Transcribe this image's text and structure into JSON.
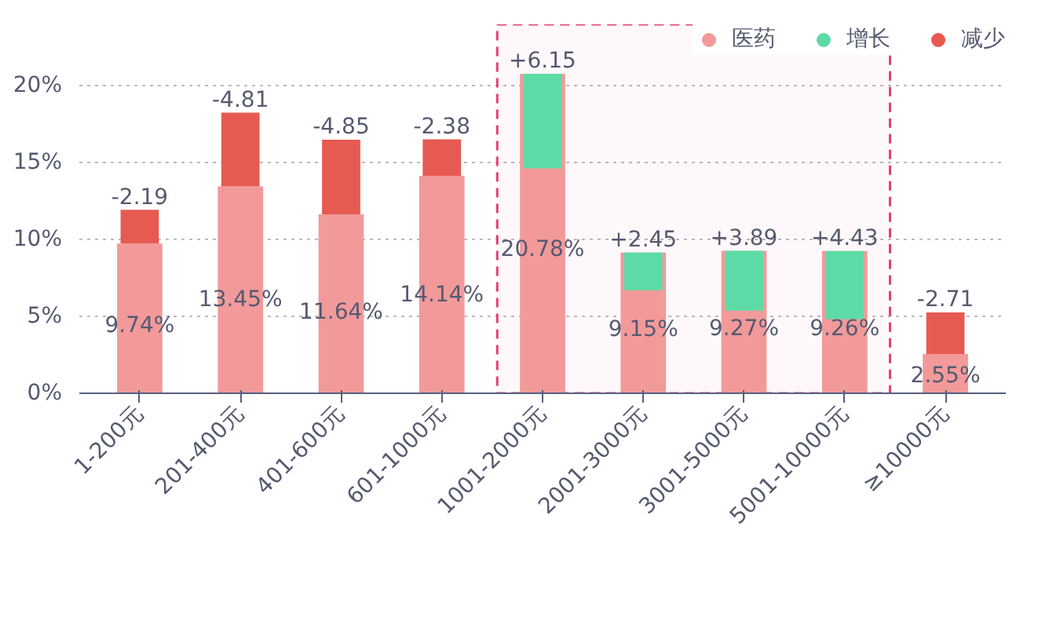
{
  "chart_data": {
    "type": "bar",
    "categories": [
      "1-200元",
      "201-400元",
      "401-600元",
      "601-1000元",
      "1001-2000元",
      "2001-3000元",
      "3001-5000元",
      "5001-10000元",
      "≥10000元"
    ],
    "ylim": [
      0,
      24
    ],
    "yticks": [
      {
        "value": 0,
        "label": "0%"
      },
      {
        "value": 5,
        "label": "5%"
      },
      {
        "value": 10,
        "label": "10%"
      },
      {
        "value": 15,
        "label": "15%"
      },
      {
        "value": 20,
        "label": "20%"
      }
    ],
    "grid": "y",
    "legend": "top right",
    "series": [
      {
        "name": "医药",
        "color": "#f29a9a",
        "values": [
          9.74,
          13.45,
          11.64,
          14.14,
          20.78,
          9.15,
          9.27,
          9.26,
          2.55
        ],
        "value_labels": [
          "9.74%",
          "13.45%",
          "11.64%",
          "14.14%",
          "20.78%",
          "9.15%",
          "9.27%",
          "9.26%",
          "2.55%"
        ]
      },
      {
        "name": "增长",
        "color": "#5ddba6",
        "values": [
          null,
          null,
          null,
          null,
          6.15,
          2.45,
          3.89,
          4.43,
          null
        ],
        "base": [
          null,
          null,
          null,
          null,
          14.63,
          6.7,
          5.38,
          4.83,
          null
        ],
        "value_labels": [
          null,
          null,
          null,
          null,
          "+6.15",
          "+2.45",
          "+3.89",
          "+4.43",
          null
        ]
      },
      {
        "name": "减少",
        "color": "#e65a52",
        "values": [
          -2.19,
          -4.81,
          -4.85,
          -2.38,
          null,
          null,
          null,
          null,
          -2.71
        ],
        "base": [
          11.93,
          18.26,
          16.49,
          16.52,
          null,
          null,
          null,
          null,
          5.26
        ],
        "value_labels": [
          "-2.19",
          "-4.81",
          "-4.85",
          "-2.38",
          null,
          null,
          null,
          null,
          "-2.71"
        ]
      }
    ],
    "bands": [
      {
        "axis": "x",
        "from": "1001-2000元",
        "to": "5001-10000元",
        "color": "#e0407a"
      }
    ]
  }
}
